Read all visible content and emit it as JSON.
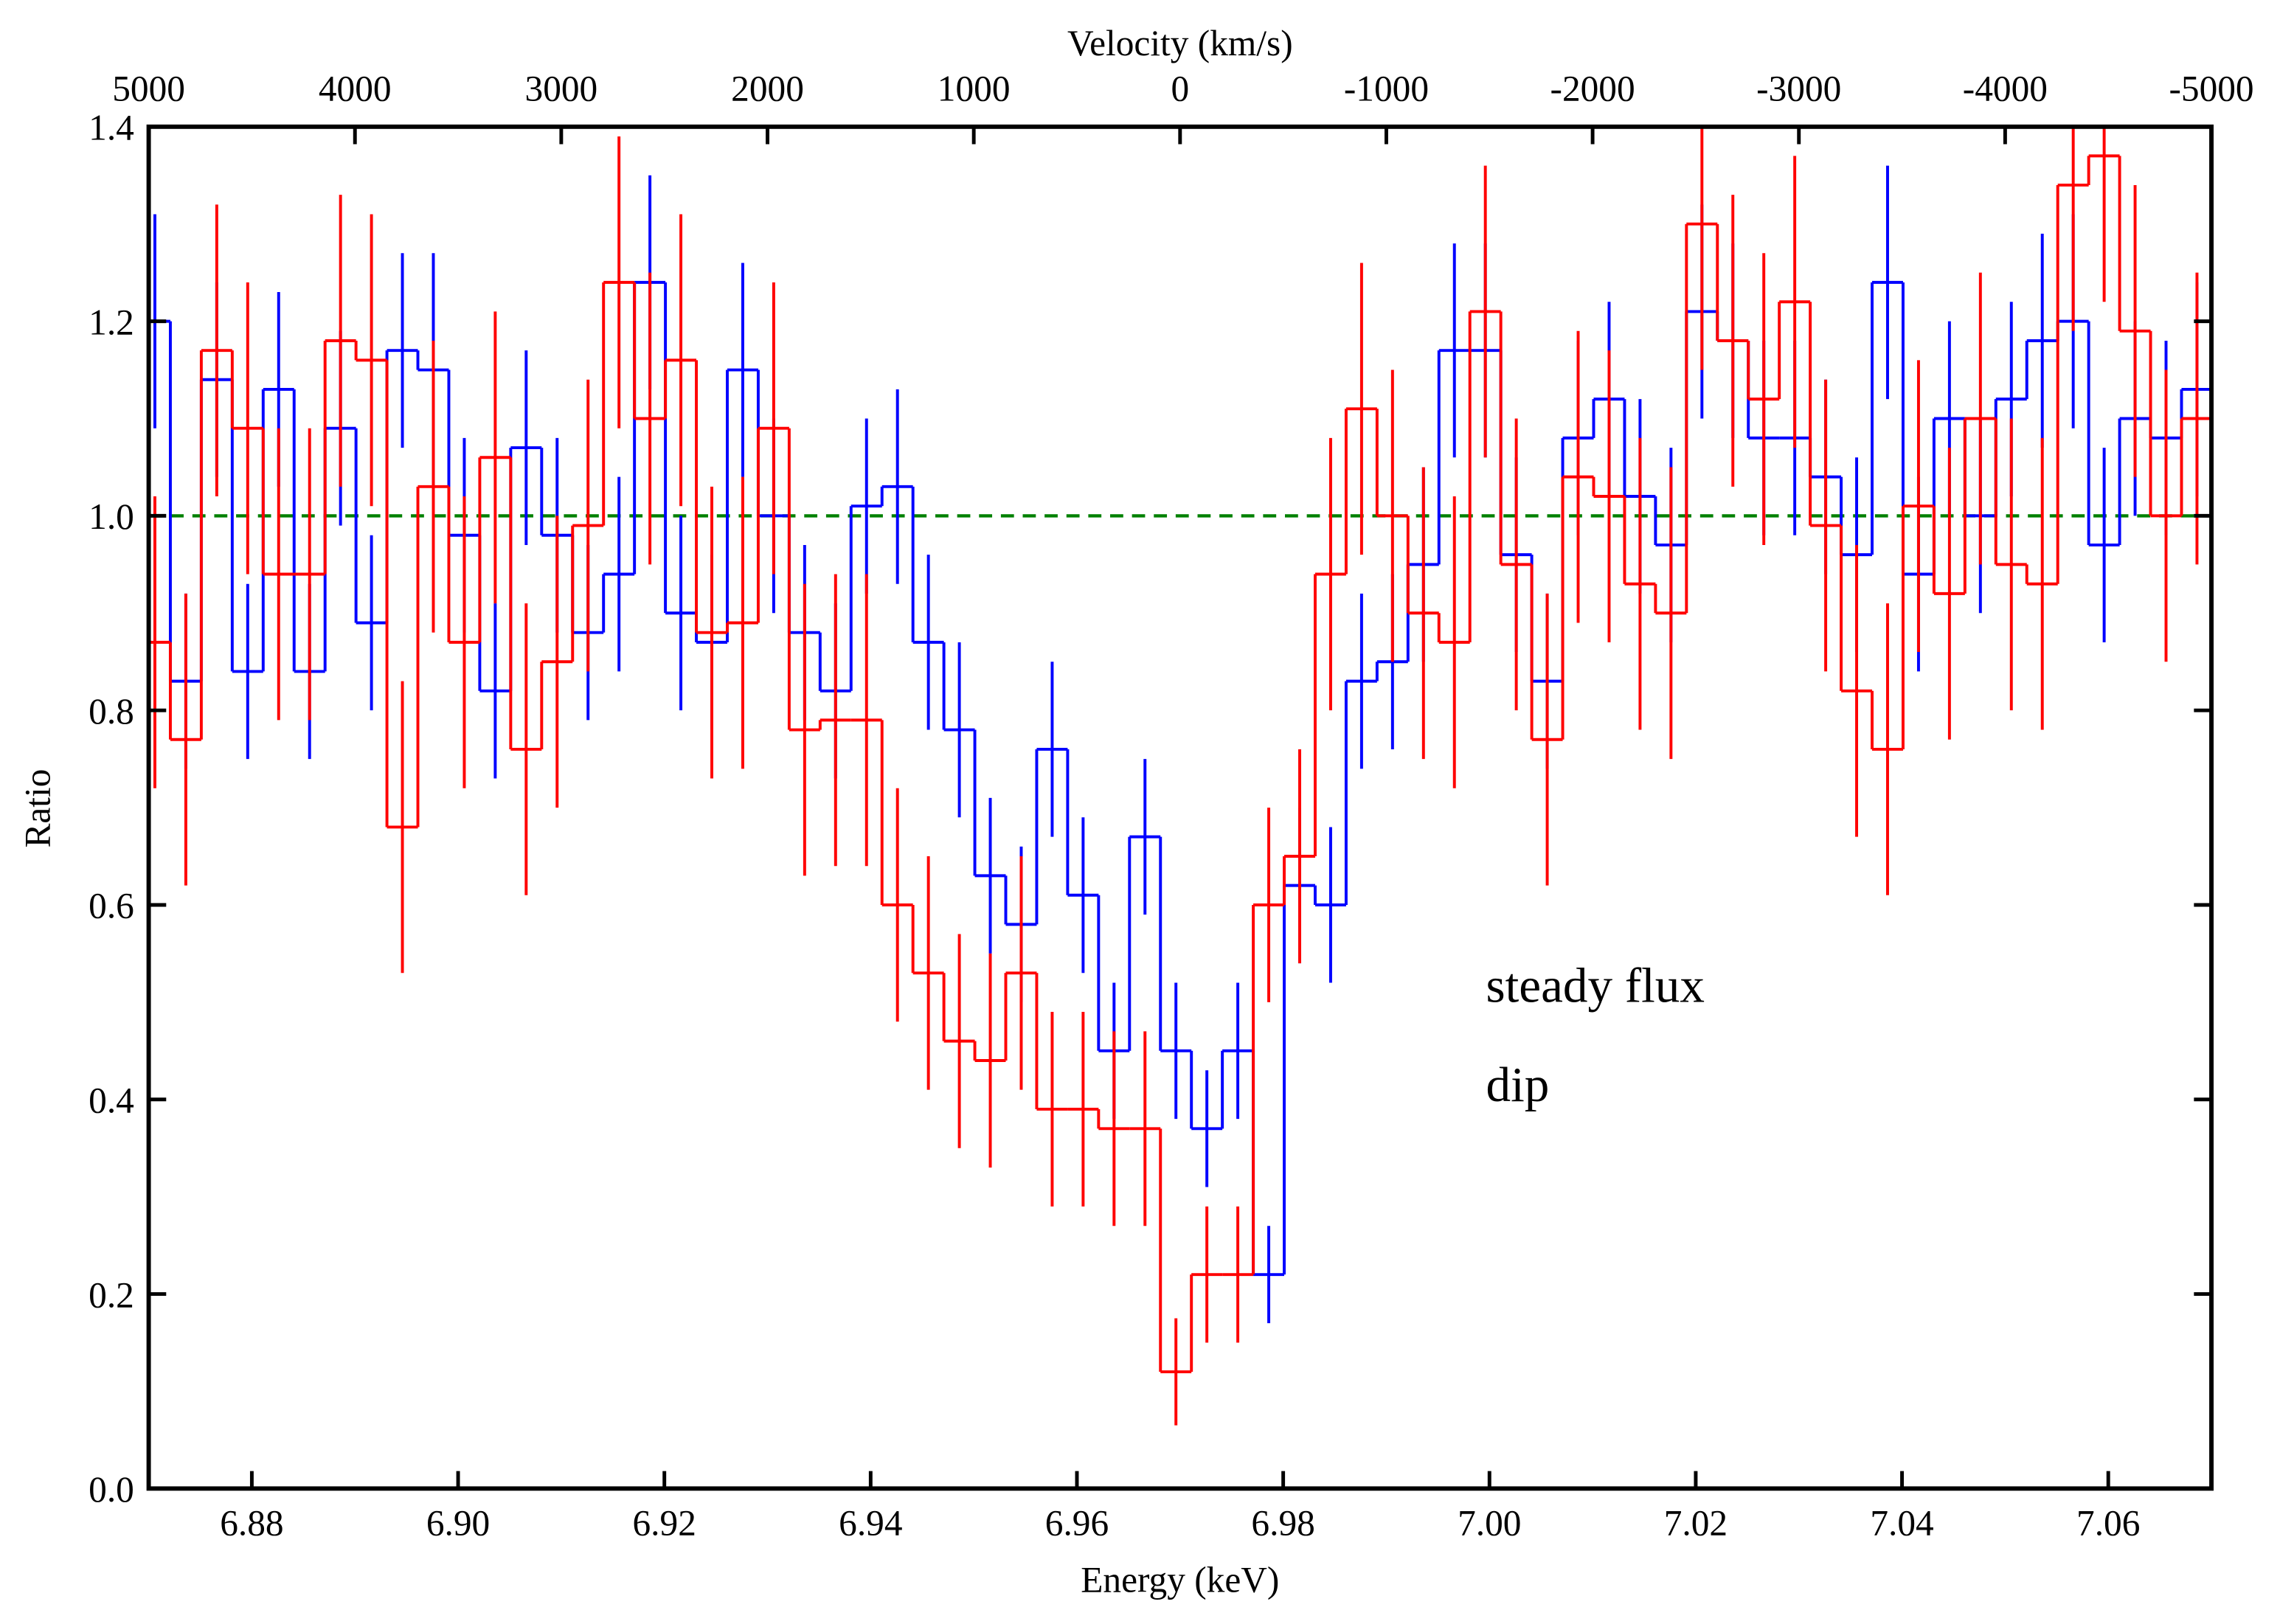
{
  "chart_data": {
    "type": "step",
    "xlabel": "Energy (keV)",
    "ylabel": "Ratio",
    "x2label": "Velocity (km/s)",
    "x": [
      6.8706,
      6.8736,
      6.8766,
      6.8796,
      6.8826,
      6.8856,
      6.8886,
      6.8916,
      6.8946,
      6.8976,
      6.9006,
      6.9036,
      6.9066,
      6.9096,
      6.9126,
      6.9156,
      6.9186,
      6.9216,
      6.9246,
      6.9276,
      6.9306,
      6.9336,
      6.9366,
      6.9396,
      6.9426,
      6.9456,
      6.9486,
      6.9516,
      6.9546,
      6.9576,
      6.9606,
      6.9636,
      6.9666,
      6.9696,
      6.9726,
      6.9756,
      6.9786,
      6.9816,
      6.9846,
      6.9876,
      6.9906,
      6.9936,
      6.9966,
      6.9996,
      7.0026,
      7.0056,
      7.0086,
      7.0116,
      7.0146,
      7.0176,
      7.0206,
      7.0236,
      7.0266,
      7.0296,
      7.0326,
      7.0356,
      7.0386,
      7.0416,
      7.0446,
      7.0476,
      7.0506,
      7.0536,
      7.0566,
      7.0596,
      7.0626,
      7.0656,
      7.0686
    ],
    "series": [
      {
        "name": "steady flux",
        "color": "#0000ff",
        "values": [
          1.2,
          0.83,
          1.14,
          0.84,
          1.13,
          0.84,
          1.09,
          0.89,
          1.17,
          1.15,
          0.98,
          0.82,
          1.07,
          0.98,
          0.88,
          0.94,
          1.24,
          0.9,
          0.87,
          1.15,
          1.0,
          0.88,
          0.82,
          1.01,
          1.03,
          0.87,
          0.78,
          0.63,
          0.58,
          0.76,
          0.61,
          0.45,
          0.67,
          0.45,
          0.37,
          0.45,
          0.22,
          0.62,
          0.6,
          0.83,
          0.85,
          0.95,
          1.17,
          1.17,
          0.96,
          0.83,
          1.08,
          1.12,
          1.02,
          0.97,
          1.21,
          1.18,
          1.08,
          1.08,
          1.04,
          0.96,
          1.24,
          0.94,
          1.1,
          1.0,
          1.12,
          1.18,
          1.2,
          0.97,
          1.1,
          1.08,
          1.13
        ],
        "errors": [
          0.11,
          0.09,
          0.1,
          0.09,
          0.1,
          0.09,
          0.1,
          0.09,
          0.1,
          0.12,
          0.1,
          0.09,
          0.1,
          0.1,
          0.09,
          0.1,
          0.11,
          0.1,
          0.09,
          0.11,
          0.1,
          0.09,
          0.09,
          0.09,
          0.1,
          0.09,
          0.09,
          0.08,
          0.08,
          0.09,
          0.08,
          0.07,
          0.08,
          0.07,
          0.06,
          0.07,
          0.05,
          0.08,
          0.08,
          0.09,
          0.09,
          0.1,
          0.11,
          0.11,
          0.1,
          0.09,
          0.1,
          0.1,
          0.1,
          0.1,
          0.11,
          0.1,
          0.1,
          0.1,
          0.1,
          0.1,
          0.12,
          0.1,
          0.1,
          0.1,
          0.1,
          0.11,
          0.11,
          0.1,
          0.1,
          0.1,
          0.11
        ]
      },
      {
        "name": "dip",
        "color": "#ff0000",
        "values": [
          0.87,
          0.77,
          1.17,
          1.09,
          0.94,
          0.94,
          1.18,
          1.16,
          0.68,
          1.03,
          0.87,
          1.06,
          0.76,
          0.85,
          0.99,
          1.24,
          1.1,
          1.16,
          0.88,
          0.89,
          1.09,
          0.78,
          0.79,
          0.79,
          0.6,
          0.53,
          0.46,
          0.44,
          0.53,
          0.39,
          0.39,
          0.37,
          0.37,
          0.12,
          0.22,
          0.22,
          0.6,
          0.65,
          0.94,
          1.11,
          1.0,
          0.9,
          0.87,
          1.21,
          0.95,
          0.77,
          1.04,
          1.02,
          0.93,
          0.9,
          1.3,
          1.18,
          1.12,
          1.22,
          0.99,
          0.82,
          0.76,
          1.01,
          0.92,
          1.1,
          0.95,
          0.93,
          1.34,
          1.37,
          1.19,
          1.0,
          1.1
        ],
        "errors": [
          0.15,
          0.15,
          0.15,
          0.15,
          0.15,
          0.15,
          0.15,
          0.15,
          0.15,
          0.15,
          0.15,
          0.15,
          0.15,
          0.15,
          0.15,
          0.15,
          0.15,
          0.15,
          0.15,
          0.15,
          0.15,
          0.15,
          0.15,
          0.15,
          0.12,
          0.12,
          0.11,
          0.11,
          0.12,
          0.1,
          0.1,
          0.1,
          0.1,
          0.055,
          0.07,
          0.07,
          0.1,
          0.11,
          0.14,
          0.15,
          0.15,
          0.15,
          0.15,
          0.15,
          0.15,
          0.15,
          0.15,
          0.15,
          0.15,
          0.15,
          0.15,
          0.15,
          0.15,
          0.15,
          0.15,
          0.15,
          0.15,
          0.15,
          0.15,
          0.15,
          0.15,
          0.15,
          0.15,
          0.15,
          0.15,
          0.15,
          0.15
        ]
      }
    ],
    "hline": {
      "value": 1.0,
      "color": "#008000",
      "style": "dashed"
    },
    "xlim": [
      6.87,
      7.07
    ],
    "xticks": [
      6.88,
      {
        "value": 6.9,
        "label": "6.90"
      },
      6.92,
      6.94,
      6.96,
      6.98,
      {
        "value": 7.0,
        "label": "7.00"
      },
      7.02,
      7.04,
      7.06
    ],
    "x2lim": [
      5000,
      -5000
    ],
    "x2ticks": [
      5000,
      4000,
      3000,
      2000,
      1000,
      0,
      -1000,
      -2000,
      -3000,
      -4000,
      -5000
    ],
    "ylim": [
      0,
      1.4
    ],
    "yticks": [
      {
        "value": 0,
        "label": "0.0"
      },
      0.2,
      0.4,
      0.6,
      0.8,
      {
        "value": 1,
        "label": "1.0"
      },
      1.2,
      1.4
    ],
    "grid": false,
    "legend": "center-right"
  }
}
